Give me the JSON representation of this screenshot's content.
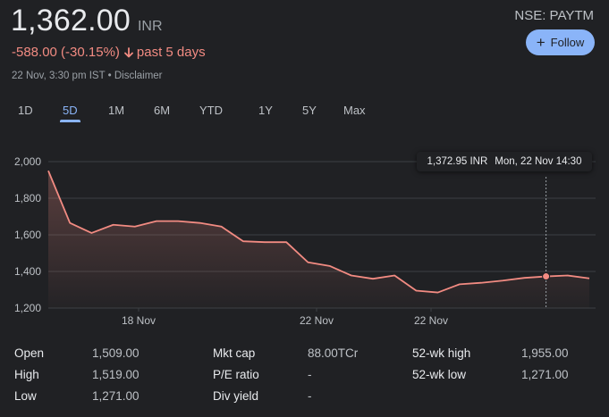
{
  "header": {
    "price": "1,362.00",
    "currency": "INR",
    "exchange": "NSE: PAYTM",
    "follow_label": "Follow",
    "change_text": "-588.00 (-30.15%)",
    "period": "past 5 days",
    "timestamp": "22 Nov, 3:30 pm IST",
    "separator": "•",
    "disclaimer": "Disclaimer"
  },
  "ranges": [
    "1D",
    "5D",
    "1M",
    "6M",
    "YTD",
    "1Y",
    "5Y",
    "Max"
  ],
  "active_range": "5D",
  "tooltip": {
    "value": "1,372.95 INR",
    "time": "Mon, 22 Nov 14:30"
  },
  "colors": {
    "line": "#f28b82",
    "accent": "#8ab4f8",
    "grid": "#3c4043"
  },
  "chart_data": {
    "type": "area",
    "xlabels": [
      "18 Nov",
      "22 Nov",
      "22 Nov"
    ],
    "yticks": [
      "2,000",
      "1,800",
      "1,600",
      "1,400",
      "1,200"
    ],
    "ylim": [
      1200,
      2000
    ],
    "grid": true,
    "series": [
      {
        "values": [
          1950,
          1665,
          1610,
          1655,
          1645,
          1675,
          1675,
          1665,
          1645,
          1565,
          1560,
          1560,
          1450,
          1430,
          1378,
          1360,
          1378,
          1295,
          1285,
          1330,
          1338,
          1350,
          1365,
          1372.95,
          1378,
          1362
        ]
      }
    ],
    "highlight": {
      "index": 23,
      "value": 1372.95
    }
  },
  "stats": {
    "open_label": "Open",
    "open": "1,509.00",
    "high_label": "High",
    "high": "1,519.00",
    "low_label": "Low",
    "low": "1,271.00",
    "mktcap_label": "Mkt cap",
    "mktcap": "88.00TCr",
    "pe_label": "P/E ratio",
    "pe": "-",
    "div_label": "Div yield",
    "div": "-",
    "wk52h_label": "52-wk high",
    "wk52h": "1,955.00",
    "wk52l_label": "52-wk low",
    "wk52l": "1,271.00"
  }
}
